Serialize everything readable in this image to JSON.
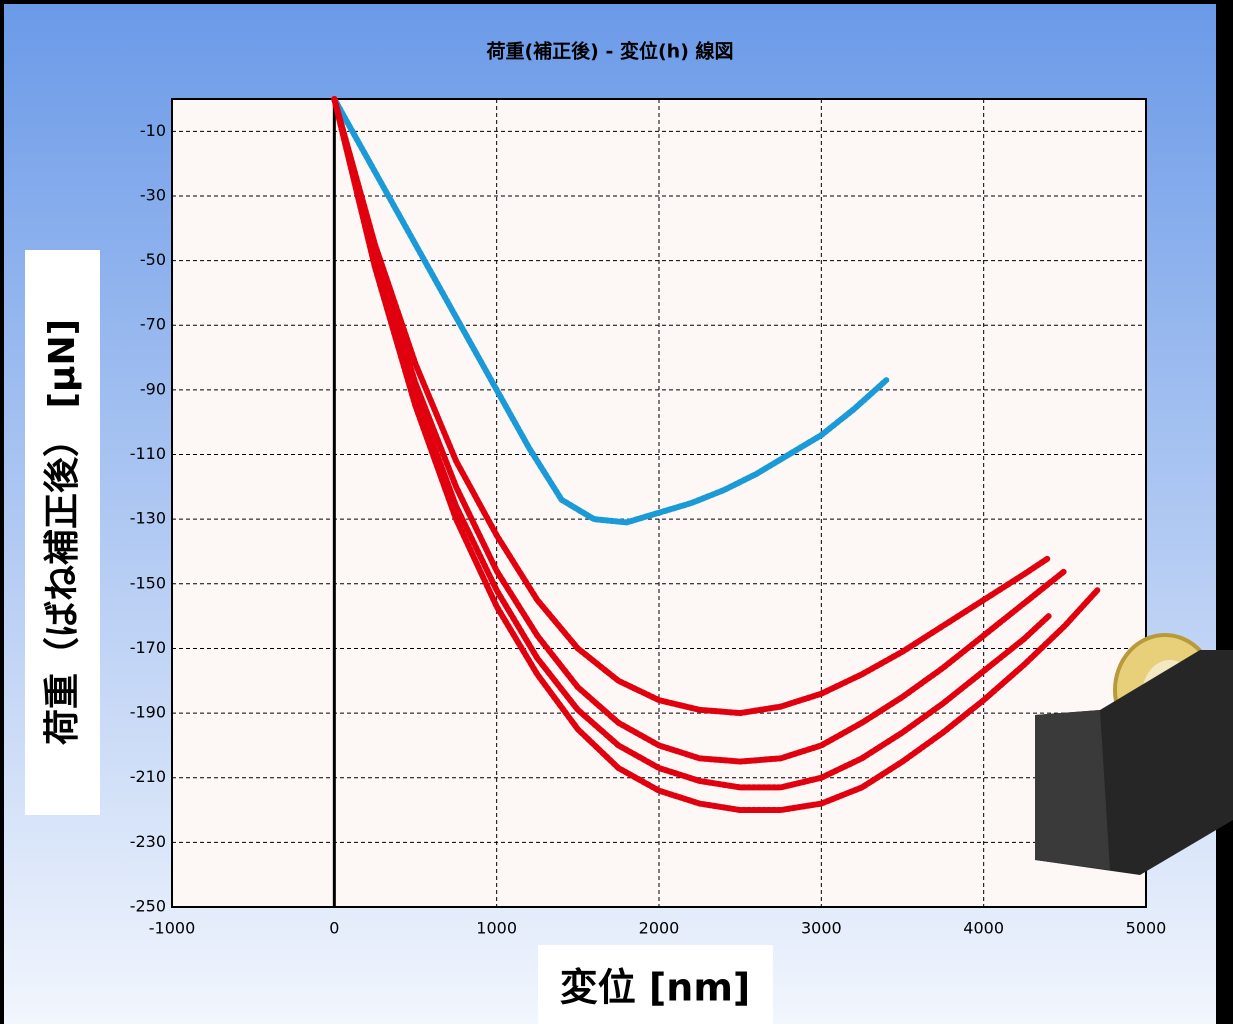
{
  "chart_data": {
    "type": "line",
    "title": "荷重(補正後) - 変位(h) 線図",
    "x_label": "変位 [nm]",
    "y_label": "荷重（ばね補正後） [μN]",
    "xlim": [
      -1000,
      5000
    ],
    "xticks": [
      -1000,
      0,
      1000,
      2000,
      3000,
      4000,
      5000
    ],
    "ylim": [
      -250,
      0
    ],
    "yticks": [
      -10,
      -30,
      -50,
      -70,
      -90,
      -110,
      -130,
      -150,
      -170,
      -190,
      -210,
      -230,
      -250
    ],
    "grid": true,
    "series": [
      {
        "color": "#1a9ad6",
        "x": [
          0,
          200,
          400,
          600,
          800,
          1000,
          1200,
          1400,
          1600,
          1800,
          2000,
          2200,
          2400,
          2600,
          2800,
          3000,
          3200,
          3400
        ],
        "values": [
          0,
          -18,
          -36,
          -54,
          -72,
          -90,
          -108,
          -124,
          -130,
          -131,
          -128,
          -125,
          -121,
          -116,
          -110,
          -104,
          -96,
          -87
        ]
      },
      {
        "color": "#e0000e",
        "x": [
          0,
          250,
          500,
          750,
          1000,
          1250,
          1500,
          1750,
          2000,
          2250,
          2500,
          2750,
          3000,
          3250,
          3500,
          3750,
          4000,
          4250,
          4400
        ],
        "values": [
          0,
          -45,
          -82,
          -112,
          -135,
          -155,
          -170,
          -180,
          -186,
          -189,
          -190,
          -188,
          -184,
          -178,
          -171,
          -163,
          -155,
          -147,
          -142
        ]
      },
      {
        "color": "#e0000e",
        "x": [
          0,
          250,
          500,
          750,
          1000,
          1250,
          1500,
          1750,
          2000,
          2250,
          2500,
          2750,
          3000,
          3250,
          3500,
          3750,
          4000,
          4250,
          4500
        ],
        "values": [
          0,
          -48,
          -88,
          -120,
          -146,
          -166,
          -182,
          -193,
          -200,
          -204,
          -205,
          -204,
          -200,
          -193,
          -185,
          -176,
          -166,
          -156,
          -146
        ]
      },
      {
        "color": "#e0000e",
        "x": [
          0,
          250,
          500,
          750,
          1000,
          1250,
          1500,
          1750,
          2000,
          2250,
          2500,
          2750,
          3000,
          3250,
          3500,
          3750,
          4000,
          4250,
          4400
        ],
        "values": [
          0,
          -50,
          -92,
          -126,
          -152,
          -173,
          -189,
          -200,
          -207,
          -211,
          -213,
          -213,
          -210,
          -204,
          -196,
          -187,
          -177,
          -167,
          -160
        ]
      },
      {
        "color": "#e0000e",
        "x": [
          0,
          250,
          500,
          750,
          1000,
          1250,
          1500,
          1750,
          2000,
          2250,
          2500,
          2750,
          3000,
          3250,
          3500,
          3750,
          4000,
          4250,
          4500,
          4700
        ],
        "values": [
          0,
          -52,
          -95,
          -130,
          -157,
          -178,
          -195,
          -207,
          -214,
          -218,
          -220,
          -220,
          -218,
          -213,
          -205,
          -196,
          -186,
          -175,
          -163,
          -152
        ]
      }
    ]
  }
}
